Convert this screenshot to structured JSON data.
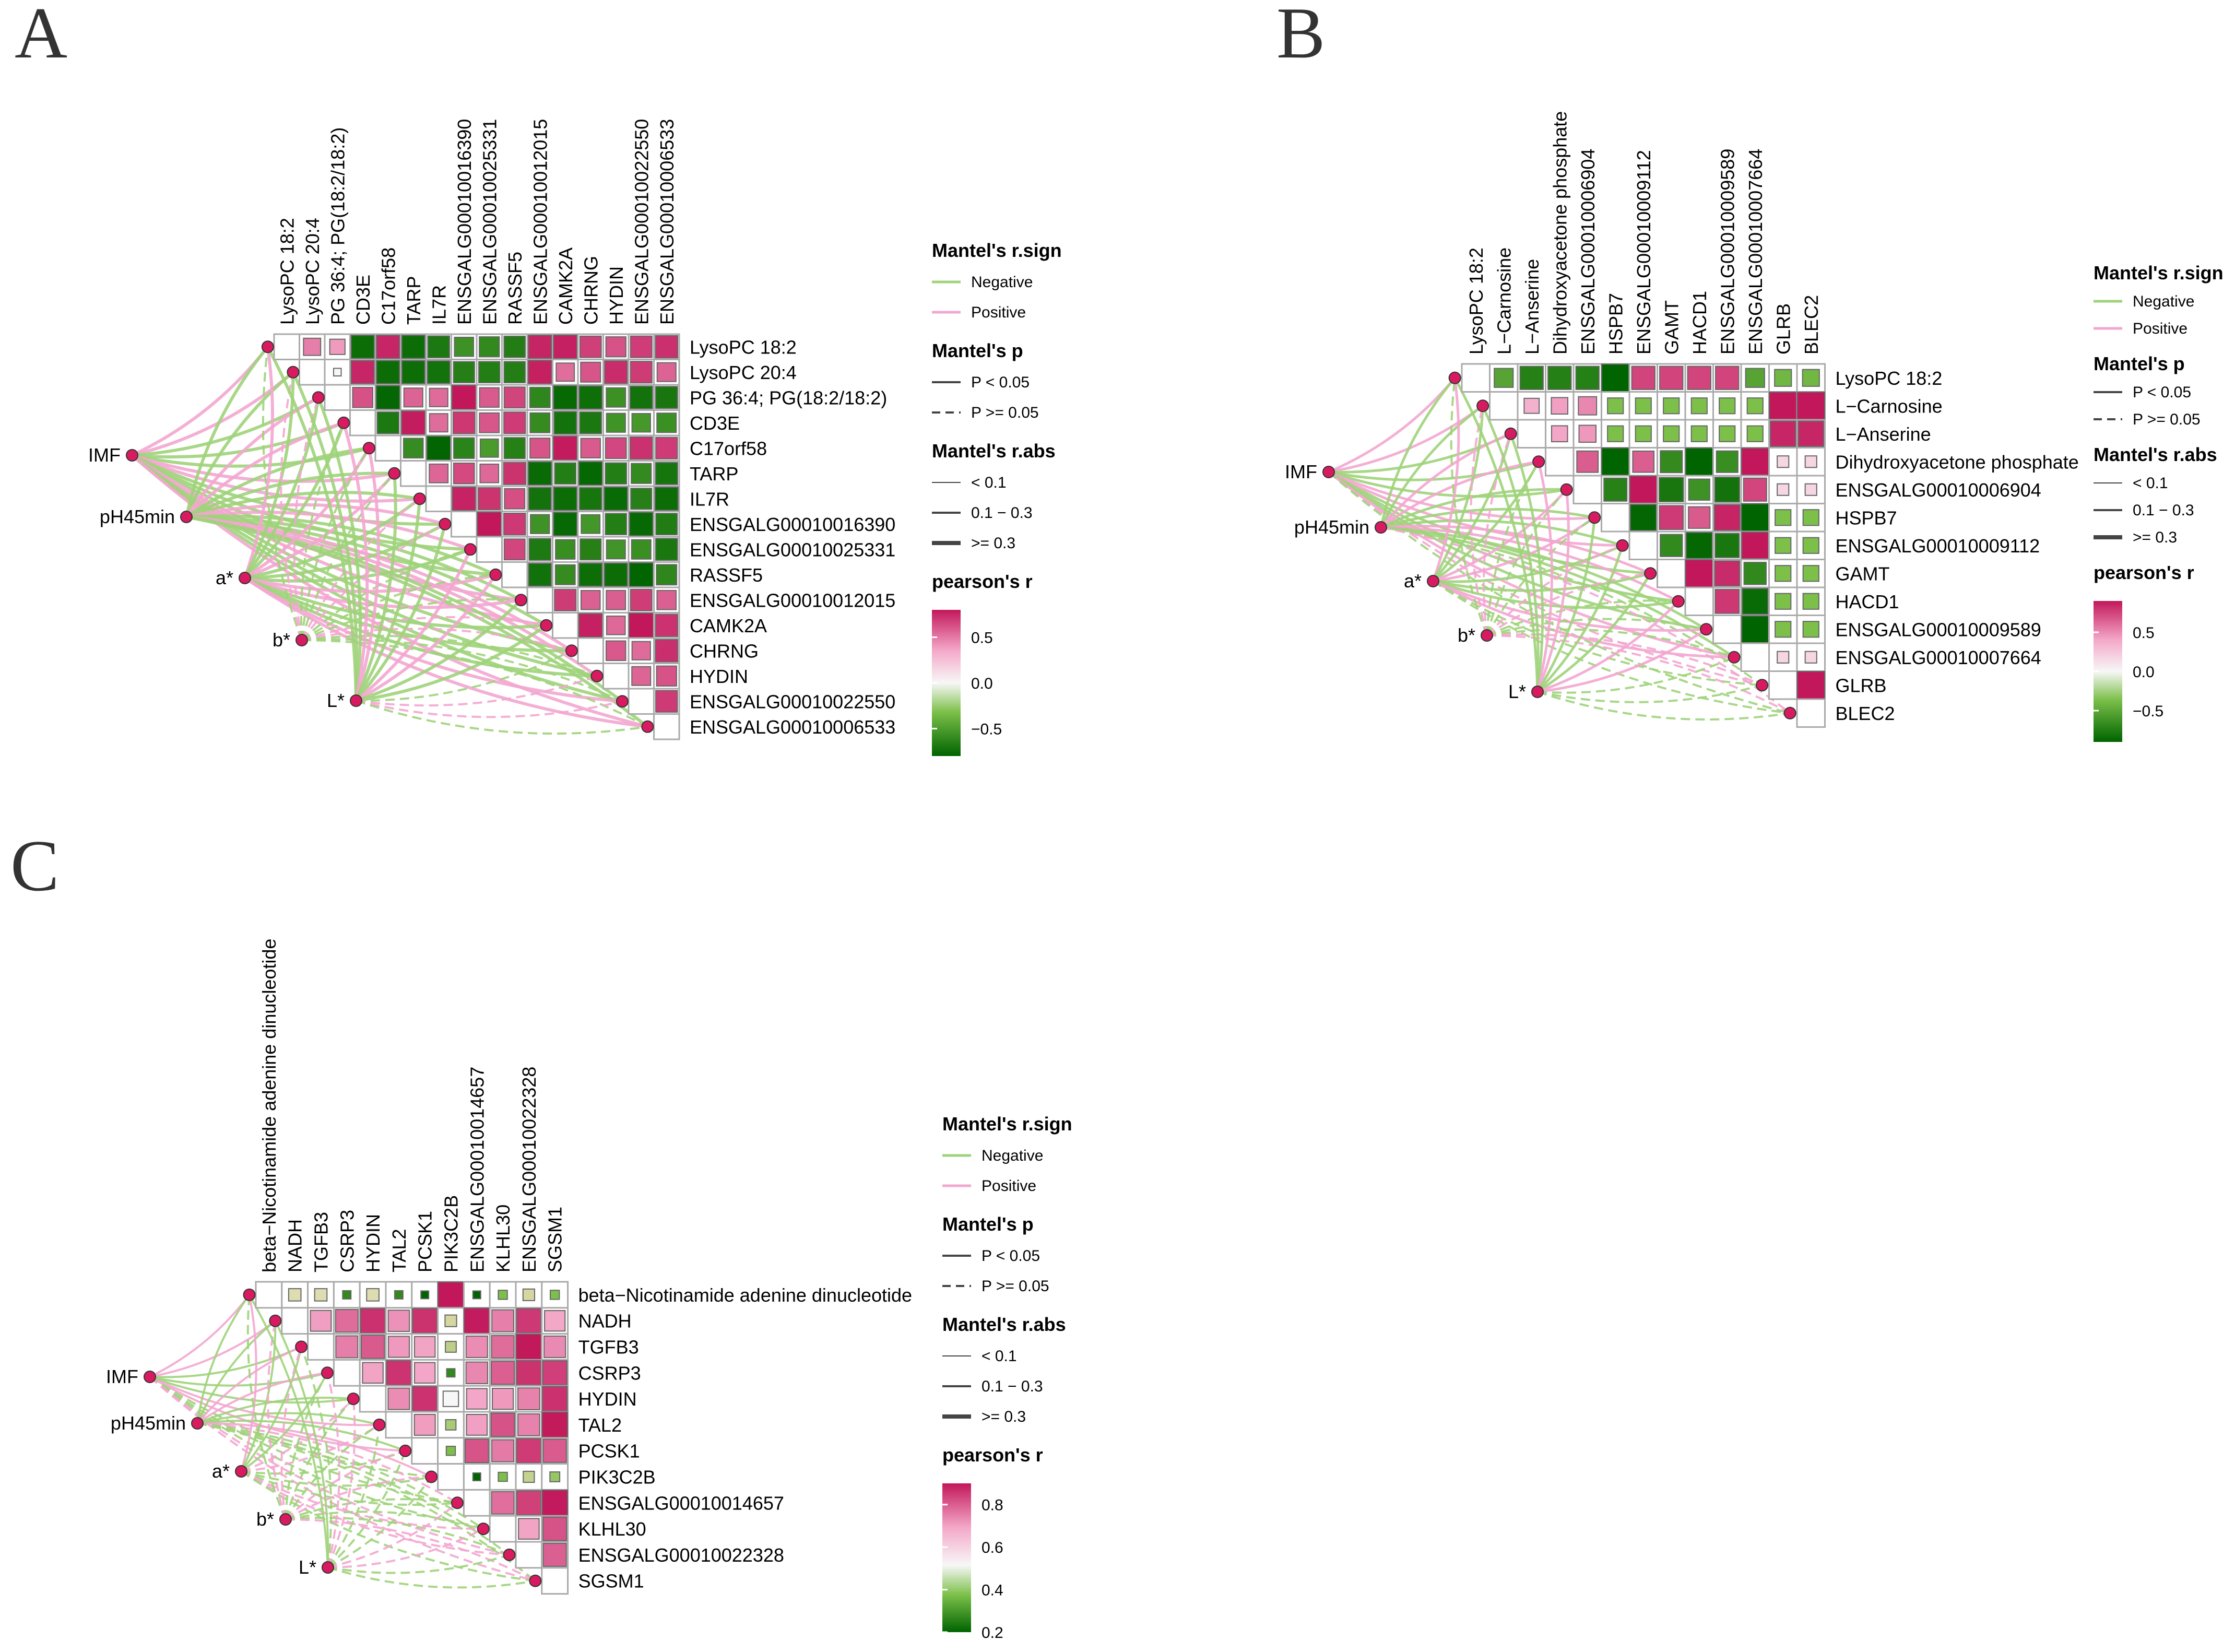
{
  "colors": {
    "negative_edge": "#9fd37a",
    "positive_edge": "#f3a6cf",
    "node_fill": "#d81b60",
    "cell_border": "#aaaaaa",
    "gradient": [
      "#006400",
      "#7cc04a",
      "#f7f7f7",
      "#f4a9c9",
      "#c2185b"
    ]
  },
  "chart_data": [
    {
      "type": "heatmap",
      "panel_label": "A",
      "title": "",
      "xlabel": "",
      "ylabel": "",
      "variables": [
        "LysoPC 18:2",
        "LysoPC 20:4",
        "PG 36:4; PG(18:2/18:2)",
        "CD3E",
        "C17orf58",
        "TARP",
        "IL7R",
        "ENSGALG00010016390",
        "ENSGALG00010025331",
        "RASSF5",
        "ENSGALG00010012015",
        "CAMK2A",
        "CHRNG",
        "HYDIN",
        "ENSGALG00010022550",
        "ENSGALG00010006533"
      ],
      "env_factors": [
        "IMF",
        "pH45min",
        "a*",
        "b*",
        "L*"
      ],
      "mantel_edges": {
        "IMF": [
          "sig",
          "sig",
          "sig",
          "sig",
          "sig",
          "sig",
          "sig",
          "sig",
          "sig",
          "sig",
          "sig",
          "sig",
          "sig",
          "sig",
          "sig",
          "sig"
        ],
        "pH45min": [
          "sig",
          "sig",
          "sig",
          "sig",
          "sig",
          "sig",
          "sig",
          "sig",
          "sig",
          "sig",
          "sig",
          "sig",
          "sig",
          "sig",
          "sig",
          "sig"
        ],
        "a*": [
          "sig",
          "sig",
          "sig",
          "sig",
          "sig",
          "sig",
          "sig",
          "sig",
          "sig",
          "sig",
          "sig",
          "sig",
          "sig",
          "sig",
          "sig",
          "sig"
        ],
        "b*": [
          "ns",
          "ns",
          "ns",
          "ns",
          "ns",
          "ns",
          "ns",
          "ns",
          "ns",
          "ns",
          "ns",
          "ns",
          "ns",
          "ns",
          "ns",
          "ns"
        ],
        "L*": [
          "sig",
          "sig",
          "sig",
          "sig",
          "sig",
          "sig",
          "sig",
          "sig",
          "sig",
          "sig",
          "sig",
          "sig",
          "ns",
          "ns",
          "ns",
          "ns"
        ]
      },
      "legend": {
        "sign_title": "Mantel's r.sign",
        "sign_items": [
          "Negative",
          "Positive"
        ],
        "p_title": "Mantel's p",
        "p_items": [
          "P < 0.05",
          "P >= 0.05"
        ],
        "abs_title": "Mantel's r.abs",
        "abs_items": [
          "< 0.1",
          "0.1 − 0.3",
          ">= 0.3"
        ],
        "color_title": "pearson's r",
        "color_range": [
          -0.8,
          0.8
        ],
        "color_ticks": [
          "0.5",
          "0.0",
          "−0.5"
        ],
        "color_tick_values": [
          0.5,
          0.0,
          -0.5
        ]
      }
    },
    {
      "type": "heatmap",
      "panel_label": "B",
      "title": "",
      "xlabel": "",
      "ylabel": "",
      "variables": [
        "LysoPC 18:2",
        "L−Carnosine",
        "L−Anserine",
        "Dihydroxyacetone phosphate",
        "ENSGALG00010006904",
        "HSPB7",
        "ENSGALG00010009112",
        "GAMT",
        "HACD1",
        "ENSGALG00010009589",
        "ENSGALG00010007664",
        "GLRB",
        "BLEC2"
      ],
      "env_factors": [
        "IMF",
        "pH45min",
        "a*",
        "b*",
        "L*"
      ],
      "mantel_edges": {
        "IMF": [
          "sig",
          "sig",
          "sig",
          "sig",
          "sig",
          "sig",
          "sig",
          "sig",
          "sig",
          "sig",
          "sig",
          "ns",
          "ns"
        ],
        "pH45min": [
          "sig",
          "sig",
          "sig",
          "sig",
          "sig",
          "sig",
          "sig",
          "sig",
          "sig",
          "sig",
          "sig",
          "ns",
          "ns"
        ],
        "a*": [
          "sig",
          "sig",
          "sig",
          "sig",
          "sig",
          "sig",
          "sig",
          "sig",
          "sig",
          "sig",
          "sig",
          "ns",
          "ns"
        ],
        "b*": [
          "ns",
          "ns",
          "ns",
          "ns",
          "ns",
          "ns",
          "ns",
          "ns",
          "ns",
          "ns",
          "ns",
          "ns",
          "ns"
        ],
        "L*": [
          "sig",
          "sig",
          "sig",
          "sig",
          "sig",
          "sig",
          "sig",
          "sig",
          "sig",
          "sig",
          "ns",
          "ns",
          "ns"
        ]
      },
      "legend": {
        "sign_title": "Mantel's r.sign",
        "sign_items": [
          "Negative",
          "Positive"
        ],
        "p_title": "Mantel's p",
        "p_items": [
          "P < 0.05",
          "P >= 0.05"
        ],
        "abs_title": "Mantel's r.abs",
        "abs_items": [
          "< 0.1",
          "0.1 − 0.3",
          ">= 0.3"
        ],
        "color_title": "pearson's r",
        "color_range": [
          -0.9,
          0.9
        ],
        "color_ticks": [
          "0.5",
          "0.0",
          "−0.5"
        ],
        "color_tick_values": [
          0.5,
          0.0,
          -0.5
        ]
      }
    },
    {
      "type": "heatmap",
      "panel_label": "C",
      "title": "",
      "xlabel": "",
      "ylabel": "",
      "variables": [
        "beta−Nicotinamide adenine dinucleotide",
        "NADH",
        "TGFB3",
        "CSRP3",
        "HYDIN",
        "TAL2",
        "PCSK1",
        "PIK3C2B",
        "ENSGALG00010014657",
        "KLHL30",
        "ENSGALG00010022328",
        "SGSM1"
      ],
      "env_factors": [
        "IMF",
        "pH45min",
        "a*",
        "b*",
        "L*"
      ],
      "mantel_edges": {
        "IMF": [
          "sig",
          "sig",
          "sig",
          "sig",
          "sig",
          "sig",
          "sig",
          "ns",
          "ns",
          "ns",
          "ns",
          "ns"
        ],
        "pH45min": [
          "sig",
          "sig",
          "sig",
          "sig",
          "sig",
          "sig",
          "sig",
          "sig",
          "ns",
          "ns",
          "ns",
          "ns"
        ],
        "a*": [
          "sig",
          "sig",
          "sig",
          "sig",
          "ns",
          "ns",
          "ns",
          "ns",
          "ns",
          "ns",
          "ns",
          "ns"
        ],
        "b*": [
          "ns",
          "ns",
          "ns",
          "ns",
          "ns",
          "ns",
          "ns",
          "ns",
          "ns",
          "ns",
          "ns",
          "ns"
        ],
        "L*": [
          "sig",
          "sig",
          "ns",
          "ns",
          "ns",
          "ns",
          "ns",
          "ns",
          "ns",
          "ns",
          "ns",
          "ns"
        ]
      },
      "legend": {
        "sign_title": "Mantel's r.sign",
        "sign_items": [
          "Negative",
          "Positive"
        ],
        "p_title": "Mantel's p",
        "p_items": [
          "P < 0.05",
          "P >= 0.05"
        ],
        "abs_title": "Mantel's r.abs",
        "abs_items": [
          "< 0.1",
          "0.1 − 0.3",
          ">= 0.3"
        ],
        "color_title": "pearson's r",
        "color_range": [
          0.2,
          0.9
        ],
        "color_ticks": [
          "0.8",
          "0.6",
          "0.4",
          "0.2"
        ],
        "color_tick_values": [
          0.8,
          0.6,
          0.4,
          0.2
        ]
      }
    }
  ]
}
